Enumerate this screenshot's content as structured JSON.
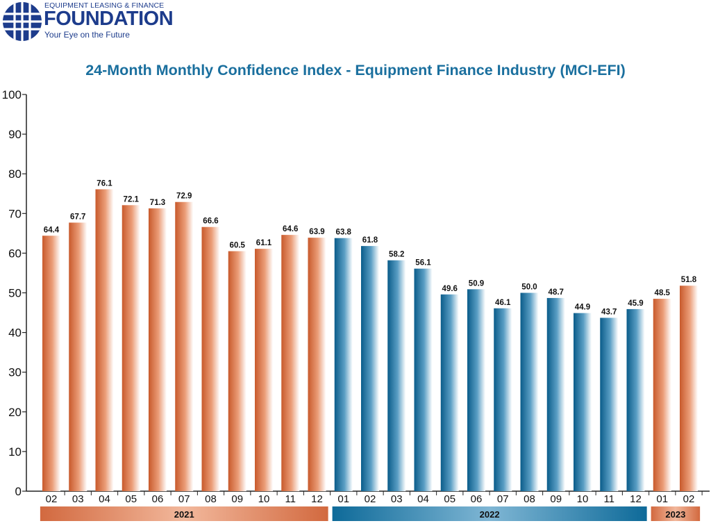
{
  "logo": {
    "org_line": "EQUIPMENT LEASING & FINANCE",
    "brand": "FOUNDATION",
    "tagline": "Your Eye on the Future"
  },
  "colors": {
    "title": "#1a6f9e",
    "brand": "#1d3c8c",
    "bar_2021": "#d2693f",
    "bar_2022": "#0e6a99",
    "bar_2023": "#d2693f"
  },
  "chart_data": {
    "type": "bar",
    "title": "24-Month Monthly Confidence Index - Equipment Finance Industry (MCI-EFI)",
    "xlabel": "",
    "ylabel": "",
    "ylim": [
      0,
      100
    ],
    "yticks": [
      0,
      10,
      20,
      30,
      40,
      50,
      60,
      70,
      80,
      90,
      100
    ],
    "grid": false,
    "categories": [
      "02",
      "03",
      "04",
      "05",
      "06",
      "07",
      "08",
      "09",
      "10",
      "11",
      "12",
      "01",
      "02",
      "03",
      "04",
      "05",
      "06",
      "07",
      "08",
      "09",
      "10",
      "11",
      "12",
      "01",
      "02"
    ],
    "values": [
      64.4,
      67.7,
      76.1,
      72.1,
      71.3,
      72.9,
      66.6,
      60.5,
      61.1,
      64.6,
      63.9,
      63.8,
      61.8,
      58.2,
      56.1,
      49.6,
      50.9,
      46.1,
      50.0,
      48.7,
      44.9,
      43.7,
      45.9,
      48.5,
      51.8
    ],
    "value_labels": [
      "64.4",
      "67.7",
      "76.1",
      "72.1",
      "71.3",
      "72.9",
      "66.6",
      "60.5",
      "61.1",
      "64.6",
      "63.9",
      "63.8",
      "61.8",
      "58.2",
      "56.1",
      "49.6",
      "50.9",
      "46.1",
      "50.0",
      "48.7",
      "44.9",
      "43.7",
      "45.9",
      "48.5",
      "51.8"
    ],
    "groups": [
      {
        "label": "2021",
        "start": 0,
        "end": 10,
        "color_key": "bar_2021"
      },
      {
        "label": "2022",
        "start": 11,
        "end": 22,
        "color_key": "bar_2022"
      },
      {
        "label": "2023",
        "start": 23,
        "end": 24,
        "color_key": "bar_2023"
      }
    ]
  }
}
